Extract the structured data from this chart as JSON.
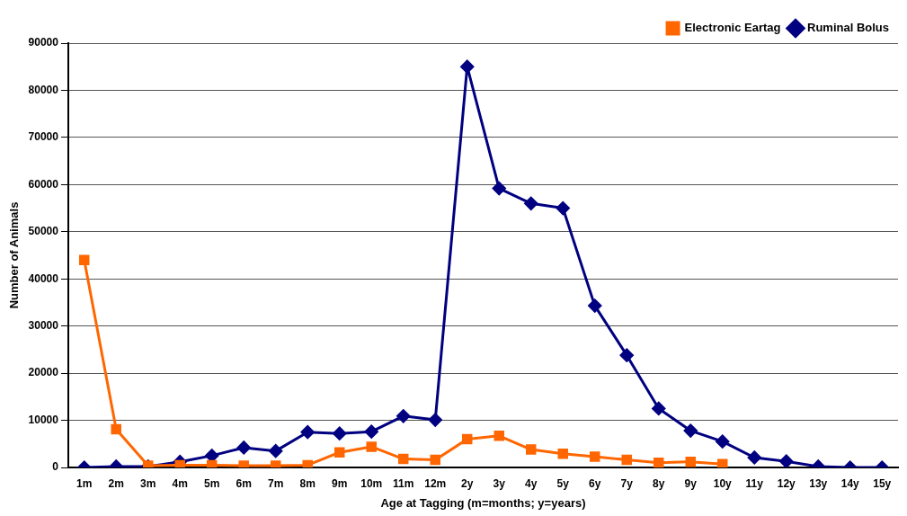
{
  "chart_data": {
    "type": "line",
    "xlabel": "Age at Tagging (m=months; y=years)",
    "ylabel": "Number of Animals",
    "categories": [
      "1m",
      "2m",
      "3m",
      "4m",
      "5m",
      "6m",
      "7m",
      "8m",
      "9m",
      "10m",
      "11m",
      "12m",
      "2y",
      "3y",
      "4y",
      "5y",
      "6y",
      "7y",
      "8y",
      "9y",
      "10y",
      "11y",
      "12y",
      "13y",
      "14y",
      "15y"
    ],
    "series": [
      {
        "name": "Ruminal Bolus",
        "color": "#000080",
        "marker": "diamond",
        "values": [
          0,
          200,
          200,
          1200,
          2500,
          4200,
          3500,
          7500,
          7200,
          7600,
          10900,
          10100,
          85000,
          59200,
          56000,
          55000,
          34300,
          23800,
          12500,
          7800,
          5500,
          2100,
          1300,
          200,
          0,
          0
        ]
      },
      {
        "name": "Electronic Eartag",
        "color": "#ff6600",
        "marker": "square",
        "values": [
          44000,
          8100,
          400,
          500,
          500,
          400,
          400,
          500,
          3200,
          4400,
          1800,
          1600,
          6000,
          6700,
          3800,
          2900,
          2300,
          1600,
          1000,
          1200,
          700,
          null,
          null,
          null,
          null,
          null
        ]
      }
    ],
    "ylim": [
      0,
      90000
    ],
    "yticks": [
      0,
      10000,
      20000,
      30000,
      40000,
      50000,
      60000,
      70000,
      80000,
      90000
    ],
    "grid": "y",
    "legend": "top right",
    "line_style": "solid"
  }
}
